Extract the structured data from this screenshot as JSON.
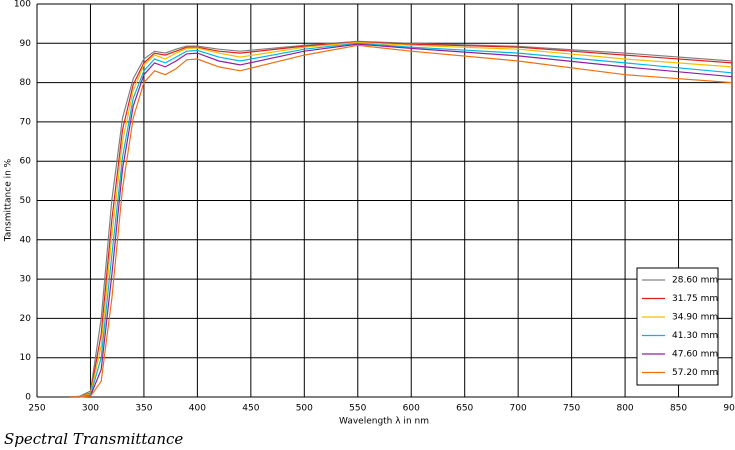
{
  "chart_data": {
    "type": "line",
    "caption": "Spectral Transmittance",
    "xlabel": "Wavelength λ in nm",
    "ylabel": "Tansmittance in %",
    "x": [
      280,
      290,
      300,
      310,
      320,
      330,
      340,
      350,
      360,
      370,
      380,
      390,
      400,
      420,
      440,
      500,
      550,
      600,
      700,
      800,
      900
    ],
    "series": [
      {
        "name": "28.60 mm",
        "color": "#808080",
        "values": [
          0,
          0.2,
          1.5,
          20,
          50,
          71,
          81,
          86,
          88,
          87.5,
          88.5,
          89.3,
          89.3,
          88.5,
          88,
          89.5,
          90.5,
          90,
          89.2,
          87.5,
          85.5
        ]
      },
      {
        "name": "31.75 mm",
        "color": "#e02020",
        "values": [
          0,
          0.1,
          1,
          16,
          45,
          68,
          79.5,
          85,
          87.5,
          87,
          88,
          89,
          89,
          88,
          87.5,
          89.3,
          90.3,
          89.8,
          89,
          87,
          85
        ]
      },
      {
        "name": "34.90 mm",
        "color": "#f0c000",
        "values": [
          0,
          0.1,
          0.8,
          13,
          41,
          65,
          78,
          84.5,
          87,
          86,
          87.5,
          88.7,
          88.8,
          87.5,
          86.5,
          89,
          90.2,
          89.5,
          88.5,
          86,
          84
        ]
      },
      {
        "name": "41.30 mm",
        "color": "#00b8e0",
        "values": [
          0,
          0,
          0.5,
          10,
          36,
          61,
          76,
          83,
          86,
          85,
          86.5,
          88,
          88.2,
          86.5,
          85.5,
          88.5,
          90,
          89,
          87.5,
          85,
          82.5
        ]
      },
      {
        "name": "47.60 mm",
        "color": "#9020a0",
        "values": [
          0,
          0,
          0.3,
          7,
          31,
          58,
          74,
          82,
          85,
          84,
          85.5,
          87.3,
          87.5,
          85.5,
          84.5,
          88,
          89.8,
          88.7,
          86.8,
          84,
          81.5
        ]
      },
      {
        "name": "57.20 mm",
        "color": "#f07010",
        "values": [
          0,
          0,
          0.2,
          4,
          25,
          53,
          71,
          80,
          83,
          82,
          83.5,
          85.8,
          86,
          84,
          83,
          87,
          89.5,
          88,
          85.5,
          82,
          80
        ]
      }
    ],
    "xlim": [
      250,
      900
    ],
    "xticks": [
      250,
      300,
      350,
      400,
      450,
      500,
      550,
      600,
      650,
      700,
      750,
      800,
      850,
      900
    ],
    "ylim": [
      0,
      100
    ],
    "yticks": [
      0,
      10,
      20,
      30,
      40,
      50,
      60,
      70,
      80,
      90,
      100
    ],
    "grid": true,
    "legend": "lower right"
  }
}
